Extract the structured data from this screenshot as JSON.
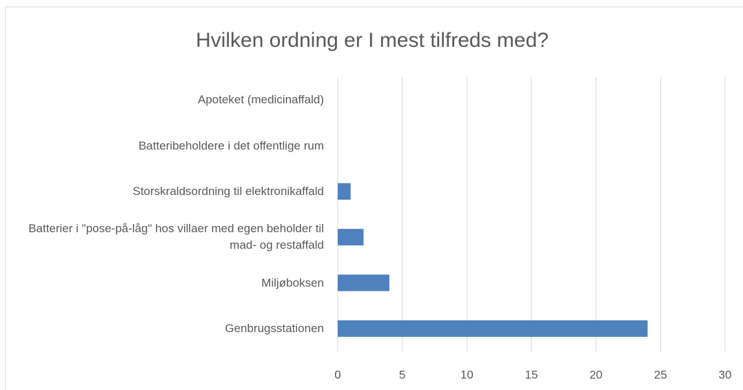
{
  "chart_data": {
    "type": "bar",
    "orientation": "horizontal",
    "title": "Hvilken ordning er I mest tilfreds med?",
    "categories": [
      "Apoteket (medicinaffald)",
      "Batteribeholdere i det offentlige rum",
      "Storskraldsordning til elektronikaffald",
      "Batterier i \"pose-på-låg\" hos villaer med egen beholder til mad- og restaffald",
      "Miljøboksen",
      "Genbrugsstationen"
    ],
    "values": [
      0,
      0,
      1,
      2,
      4,
      24
    ],
    "color": "#4f81bd",
    "xlim": [
      0,
      30
    ],
    "xticks": [
      0,
      5,
      10,
      15,
      20,
      25,
      30
    ],
    "grid": true
  }
}
